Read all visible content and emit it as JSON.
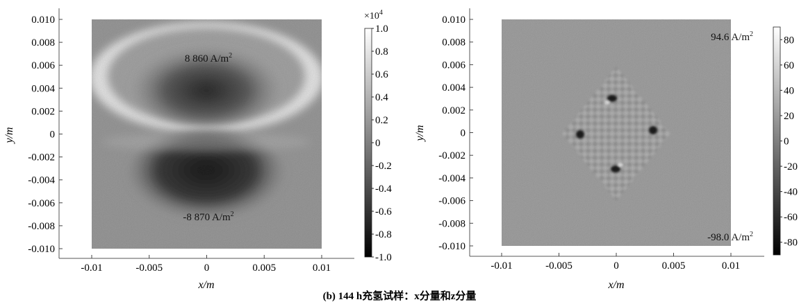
{
  "caption": "(b) 144 h充氢试样：x分量和z分量",
  "chart_data": [
    {
      "type": "heatmap",
      "xlabel": "x/m",
      "ylabel": "y/m",
      "xlim": [
        -0.01,
        0.01
      ],
      "ylim": [
        -0.01,
        0.01
      ],
      "xticks": [
        -0.01,
        -0.005,
        0,
        0.005,
        0.01
      ],
      "xtick_labels": [
        "-0.01",
        "-0.005",
        "0",
        "0.005",
        "0.01"
      ],
      "yticks": [
        0.01,
        0.008,
        0.006,
        0.004,
        0.002,
        0,
        -0.002,
        -0.004,
        -0.006,
        -0.008,
        -0.01
      ],
      "ytick_labels": [
        "0.010",
        "0.008",
        "0.006",
        "0.004",
        "0.002",
        "0",
        "-0.002",
        "-0.004",
        "-0.006",
        "-0.008",
        "-0.010"
      ],
      "colorbar": {
        "min": -1.0,
        "max": 1.0,
        "multiplier": "×10",
        "exponent": "4",
        "ticks": [
          1.0,
          0.8,
          0.6,
          0.4,
          0.2,
          0,
          -0.2,
          -0.4,
          -0.6,
          -0.8,
          -1.0
        ],
        "tick_labels": [
          "1.0",
          "0.8",
          "0.6",
          "0.4",
          "0.2",
          "0",
          "-0.2",
          "-0.4",
          "-0.6",
          "-0.8",
          "-1.0"
        ],
        "colormap": "grayscale"
      },
      "annotations": [
        {
          "text": "8 860 A/m",
          "sup": "2",
          "x": 0.0,
          "y": 0.0067
        },
        {
          "text": "-8 870 A/m",
          "sup": "2",
          "x": 0.0,
          "y": -0.0072
        }
      ],
      "features": [
        {
          "kind": "peak",
          "x": 0.0,
          "y": 0.0035,
          "value": 8860
        },
        {
          "kind": "trough",
          "x": 0.0,
          "y": -0.0035,
          "value": -8870
        }
      ]
    },
    {
      "type": "heatmap",
      "xlabel": "x/m",
      "ylabel": "y/m",
      "xlim": [
        -0.01,
        0.01
      ],
      "ylim": [
        -0.01,
        0.01
      ],
      "xticks": [
        -0.01,
        -0.005,
        0,
        0.005,
        0.01
      ],
      "xtick_labels": [
        "-0.01",
        "-0.005",
        "0",
        "0.005",
        "0.01"
      ],
      "yticks": [
        0.01,
        0.008,
        0.006,
        0.004,
        0.002,
        0,
        -0.002,
        -0.004,
        -0.006,
        -0.008,
        -0.01
      ],
      "ytick_labels": [
        "0.010",
        "0.008",
        "0.006",
        "0.004",
        "0.002",
        "0",
        "-0.002",
        "-0.004",
        "-0.006",
        "-0.008",
        "-0.010"
      ],
      "colorbar": {
        "min": -90,
        "max": 90,
        "ticks": [
          80,
          60,
          40,
          20,
          0,
          -20,
          -40,
          -60,
          -80
        ],
        "tick_labels": [
          "80",
          "60",
          "40",
          "20",
          "0",
          "-20",
          "-40",
          "-60",
          "-80"
        ],
        "colormap": "grayscale"
      },
      "annotations": [
        {
          "text": "94.6 A/m",
          "sup": "2",
          "x": 0.0075,
          "y": 0.0085
        },
        {
          "text": "-98.0 A/m",
          "sup": "2",
          "x": 0.0075,
          "y": -0.0091
        }
      ],
      "features": [
        {
          "kind": "hotspot",
          "x": 0.0,
          "y": 0.0033
        },
        {
          "kind": "hotspot",
          "x": -0.0033,
          "y": 0.0
        },
        {
          "kind": "hotspot",
          "x": 0.0033,
          "y": 0.0
        },
        {
          "kind": "hotspot",
          "x": 0.0,
          "y": -0.0033
        }
      ]
    }
  ]
}
